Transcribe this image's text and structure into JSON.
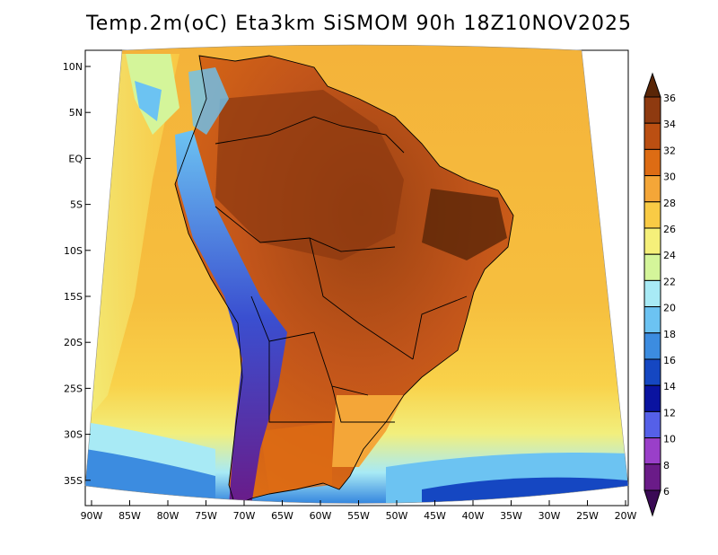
{
  "title": "Temp.2m(oC) Eta3km SiSMOM 90h 18Z10NOV2025",
  "lat_ticks": [
    "10N",
    "5N",
    "EQ",
    "5S",
    "10S",
    "15S",
    "20S",
    "25S",
    "30S",
    "35S"
  ],
  "lon_ticks": [
    "90W",
    "85W",
    "80W",
    "75W",
    "70W",
    "65W",
    "60W",
    "55W",
    "50W",
    "45W",
    "40W",
    "35W",
    "30W",
    "25W",
    "20W"
  ],
  "colorbar": {
    "labels": [
      "36",
      "34",
      "32",
      "30",
      "28",
      "26",
      "24",
      "22",
      "20",
      "18",
      "16",
      "14",
      "12",
      "10",
      "8",
      "6"
    ],
    "colors": [
      "#5a2607",
      "#8e3a10",
      "#bb4f12",
      "#dd6c14",
      "#f4a638",
      "#f9cb45",
      "#f5f07a",
      "#d4f59a",
      "#a8eaf5",
      "#6cc3f2",
      "#3c8ce0",
      "#1547c2",
      "#0a13a0",
      "#5560e8",
      "#9a3fc9",
      "#6a1b88",
      "#3a0a55"
    ]
  },
  "colors": {
    "ocean_warm": "#f4b43c",
    "ocean_mid": "#f9d24a",
    "ocean_cool": "#f2ef7d",
    "land_hot": "#c85a18",
    "land_very_hot": "#8e3a10",
    "andes_cold": "#3a4fd0",
    "border": "#000000"
  }
}
